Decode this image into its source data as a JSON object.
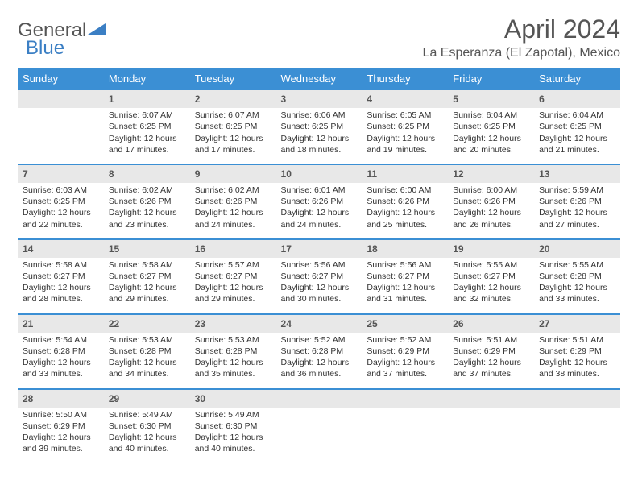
{
  "logo": {
    "part1": "General",
    "part2": "Blue"
  },
  "title": "April 2024",
  "location": "La Esperanza (El Zapotal), Mexico",
  "colors": {
    "header_bg": "#3b8fd4",
    "header_text": "#ffffff",
    "daynum_bg": "#e8e8e8",
    "daynum_border": "#3b8fd4",
    "body_text": "#333333",
    "title_text": "#555555",
    "logo_gray": "#555555",
    "logo_blue": "#3b7fc4"
  },
  "daysOfWeek": [
    "Sunday",
    "Monday",
    "Tuesday",
    "Wednesday",
    "Thursday",
    "Friday",
    "Saturday"
  ],
  "weeks": [
    [
      null,
      {
        "n": "1",
        "sr": "Sunrise: 6:07 AM",
        "ss": "Sunset: 6:25 PM",
        "d1": "Daylight: 12 hours",
        "d2": "and 17 minutes."
      },
      {
        "n": "2",
        "sr": "Sunrise: 6:07 AM",
        "ss": "Sunset: 6:25 PM",
        "d1": "Daylight: 12 hours",
        "d2": "and 17 minutes."
      },
      {
        "n": "3",
        "sr": "Sunrise: 6:06 AM",
        "ss": "Sunset: 6:25 PM",
        "d1": "Daylight: 12 hours",
        "d2": "and 18 minutes."
      },
      {
        "n": "4",
        "sr": "Sunrise: 6:05 AM",
        "ss": "Sunset: 6:25 PM",
        "d1": "Daylight: 12 hours",
        "d2": "and 19 minutes."
      },
      {
        "n": "5",
        "sr": "Sunrise: 6:04 AM",
        "ss": "Sunset: 6:25 PM",
        "d1": "Daylight: 12 hours",
        "d2": "and 20 minutes."
      },
      {
        "n": "6",
        "sr": "Sunrise: 6:04 AM",
        "ss": "Sunset: 6:25 PM",
        "d1": "Daylight: 12 hours",
        "d2": "and 21 minutes."
      }
    ],
    [
      {
        "n": "7",
        "sr": "Sunrise: 6:03 AM",
        "ss": "Sunset: 6:25 PM",
        "d1": "Daylight: 12 hours",
        "d2": "and 22 minutes."
      },
      {
        "n": "8",
        "sr": "Sunrise: 6:02 AM",
        "ss": "Sunset: 6:26 PM",
        "d1": "Daylight: 12 hours",
        "d2": "and 23 minutes."
      },
      {
        "n": "9",
        "sr": "Sunrise: 6:02 AM",
        "ss": "Sunset: 6:26 PM",
        "d1": "Daylight: 12 hours",
        "d2": "and 24 minutes."
      },
      {
        "n": "10",
        "sr": "Sunrise: 6:01 AM",
        "ss": "Sunset: 6:26 PM",
        "d1": "Daylight: 12 hours",
        "d2": "and 24 minutes."
      },
      {
        "n": "11",
        "sr": "Sunrise: 6:00 AM",
        "ss": "Sunset: 6:26 PM",
        "d1": "Daylight: 12 hours",
        "d2": "and 25 minutes."
      },
      {
        "n": "12",
        "sr": "Sunrise: 6:00 AM",
        "ss": "Sunset: 6:26 PM",
        "d1": "Daylight: 12 hours",
        "d2": "and 26 minutes."
      },
      {
        "n": "13",
        "sr": "Sunrise: 5:59 AM",
        "ss": "Sunset: 6:26 PM",
        "d1": "Daylight: 12 hours",
        "d2": "and 27 minutes."
      }
    ],
    [
      {
        "n": "14",
        "sr": "Sunrise: 5:58 AM",
        "ss": "Sunset: 6:27 PM",
        "d1": "Daylight: 12 hours",
        "d2": "and 28 minutes."
      },
      {
        "n": "15",
        "sr": "Sunrise: 5:58 AM",
        "ss": "Sunset: 6:27 PM",
        "d1": "Daylight: 12 hours",
        "d2": "and 29 minutes."
      },
      {
        "n": "16",
        "sr": "Sunrise: 5:57 AM",
        "ss": "Sunset: 6:27 PM",
        "d1": "Daylight: 12 hours",
        "d2": "and 29 minutes."
      },
      {
        "n": "17",
        "sr": "Sunrise: 5:56 AM",
        "ss": "Sunset: 6:27 PM",
        "d1": "Daylight: 12 hours",
        "d2": "and 30 minutes."
      },
      {
        "n": "18",
        "sr": "Sunrise: 5:56 AM",
        "ss": "Sunset: 6:27 PM",
        "d1": "Daylight: 12 hours",
        "d2": "and 31 minutes."
      },
      {
        "n": "19",
        "sr": "Sunrise: 5:55 AM",
        "ss": "Sunset: 6:27 PM",
        "d1": "Daylight: 12 hours",
        "d2": "and 32 minutes."
      },
      {
        "n": "20",
        "sr": "Sunrise: 5:55 AM",
        "ss": "Sunset: 6:28 PM",
        "d1": "Daylight: 12 hours",
        "d2": "and 33 minutes."
      }
    ],
    [
      {
        "n": "21",
        "sr": "Sunrise: 5:54 AM",
        "ss": "Sunset: 6:28 PM",
        "d1": "Daylight: 12 hours",
        "d2": "and 33 minutes."
      },
      {
        "n": "22",
        "sr": "Sunrise: 5:53 AM",
        "ss": "Sunset: 6:28 PM",
        "d1": "Daylight: 12 hours",
        "d2": "and 34 minutes."
      },
      {
        "n": "23",
        "sr": "Sunrise: 5:53 AM",
        "ss": "Sunset: 6:28 PM",
        "d1": "Daylight: 12 hours",
        "d2": "and 35 minutes."
      },
      {
        "n": "24",
        "sr": "Sunrise: 5:52 AM",
        "ss": "Sunset: 6:28 PM",
        "d1": "Daylight: 12 hours",
        "d2": "and 36 minutes."
      },
      {
        "n": "25",
        "sr": "Sunrise: 5:52 AM",
        "ss": "Sunset: 6:29 PM",
        "d1": "Daylight: 12 hours",
        "d2": "and 37 minutes."
      },
      {
        "n": "26",
        "sr": "Sunrise: 5:51 AM",
        "ss": "Sunset: 6:29 PM",
        "d1": "Daylight: 12 hours",
        "d2": "and 37 minutes."
      },
      {
        "n": "27",
        "sr": "Sunrise: 5:51 AM",
        "ss": "Sunset: 6:29 PM",
        "d1": "Daylight: 12 hours",
        "d2": "and 38 minutes."
      }
    ],
    [
      {
        "n": "28",
        "sr": "Sunrise: 5:50 AM",
        "ss": "Sunset: 6:29 PM",
        "d1": "Daylight: 12 hours",
        "d2": "and 39 minutes."
      },
      {
        "n": "29",
        "sr": "Sunrise: 5:49 AM",
        "ss": "Sunset: 6:30 PM",
        "d1": "Daylight: 12 hours",
        "d2": "and 40 minutes."
      },
      {
        "n": "30",
        "sr": "Sunrise: 5:49 AM",
        "ss": "Sunset: 6:30 PM",
        "d1": "Daylight: 12 hours",
        "d2": "and 40 minutes."
      },
      null,
      null,
      null,
      null
    ]
  ]
}
